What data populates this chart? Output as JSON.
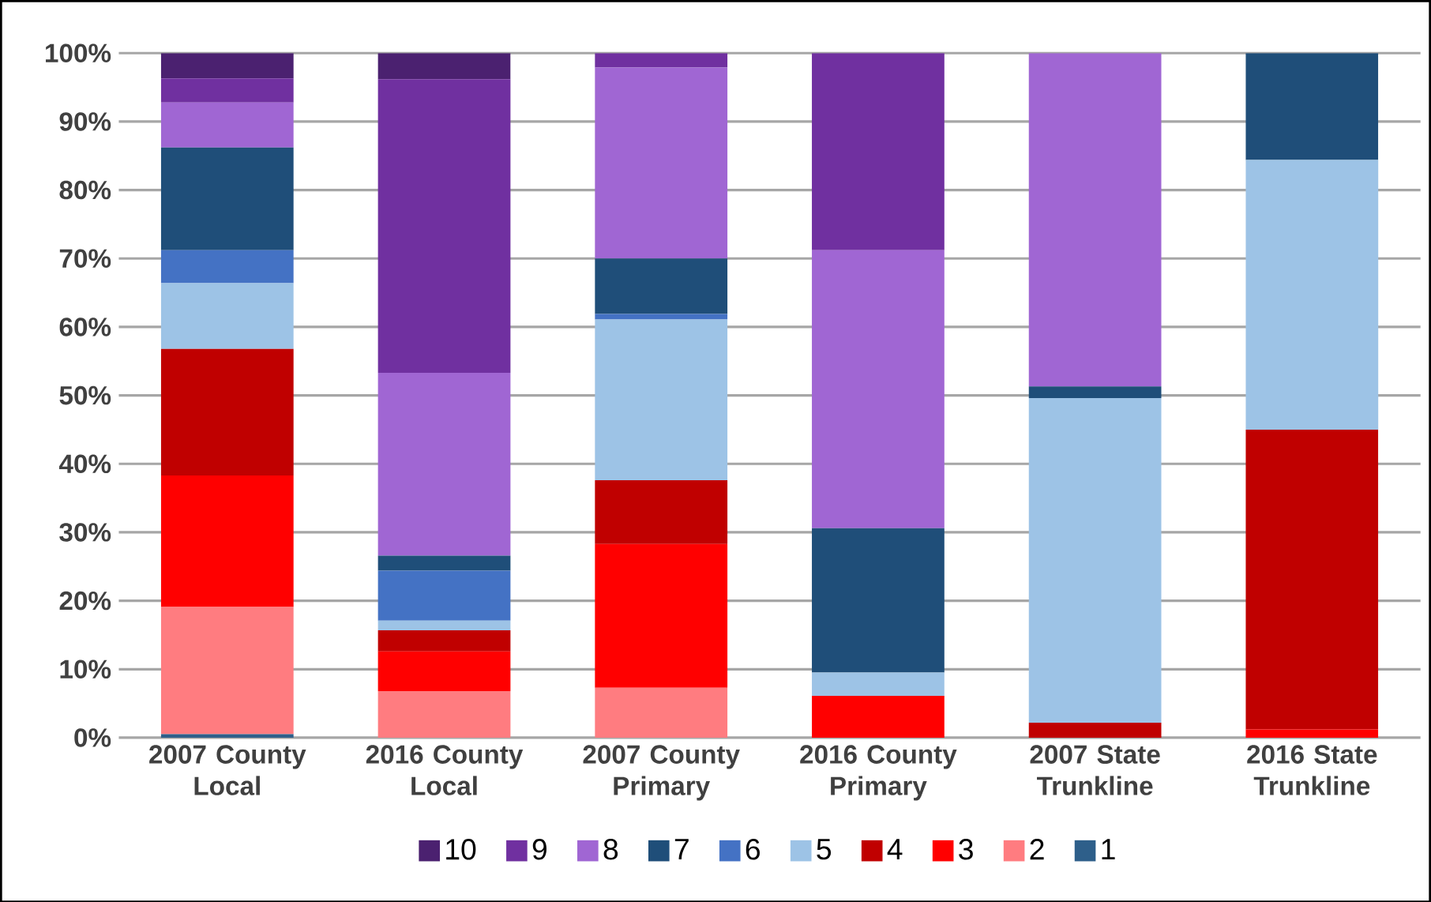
{
  "chart_data": {
    "type": "bar",
    "stacked": true,
    "categories": [
      "2007 County Local",
      "2016 County Local",
      "2007 County Primary",
      "2016 County Primary",
      "2007 State Trunkline",
      "2016 State Trunkline"
    ],
    "series": [
      {
        "name": "1",
        "color": "#2e5f8a",
        "values": [
          0.5,
          0,
          0,
          0,
          0,
          0
        ]
      },
      {
        "name": "2",
        "color": "#ff7c80",
        "values": [
          18.6,
          6.8,
          7.3,
          0,
          0,
          0
        ]
      },
      {
        "name": "3",
        "color": "#ff0000",
        "values": [
          19.2,
          5.8,
          21.0,
          6.1,
          0,
          1.2
        ]
      },
      {
        "name": "4",
        "color": "#c00000",
        "values": [
          18.5,
          3.1,
          9.3,
          0,
          2.2,
          43.8
        ]
      },
      {
        "name": "5",
        "color": "#9dc3e6",
        "values": [
          9.6,
          1.4,
          23.5,
          3.4,
          47.4,
          39.4
        ]
      },
      {
        "name": "6",
        "color": "#4472c4",
        "values": [
          4.8,
          7.3,
          0.8,
          0,
          0,
          0
        ]
      },
      {
        "name": "7",
        "color": "#1f4e79",
        "values": [
          15.0,
          2.2,
          8.1,
          21.1,
          1.7,
          15.6
        ]
      },
      {
        "name": "8",
        "color": "#a066d3",
        "values": [
          6.6,
          26.7,
          27.9,
          40.6,
          48.7,
          0
        ]
      },
      {
        "name": "9",
        "color": "#7030a0",
        "values": [
          3.5,
          42.9,
          2.1,
          28.8,
          0,
          0
        ]
      },
      {
        "name": "10",
        "color": "#4b2170",
        "values": [
          3.7,
          3.8,
          0,
          0,
          0,
          0
        ]
      }
    ],
    "ylim": [
      0,
      100
    ],
    "yticks": [
      {
        "value": 0,
        "label": "0%"
      },
      {
        "value": 10,
        "label": "10%"
      },
      {
        "value": 20,
        "label": "20%"
      },
      {
        "value": 30,
        "label": "30%"
      },
      {
        "value": 40,
        "label": "40%"
      },
      {
        "value": 50,
        "label": "50%"
      },
      {
        "value": 60,
        "label": "60%"
      },
      {
        "value": 70,
        "label": "70%"
      },
      {
        "value": 80,
        "label": "80%"
      },
      {
        "value": 90,
        "label": "90%"
      },
      {
        "value": 100,
        "label": "100%"
      }
    ],
    "grid": "y",
    "legend": "bottom"
  }
}
